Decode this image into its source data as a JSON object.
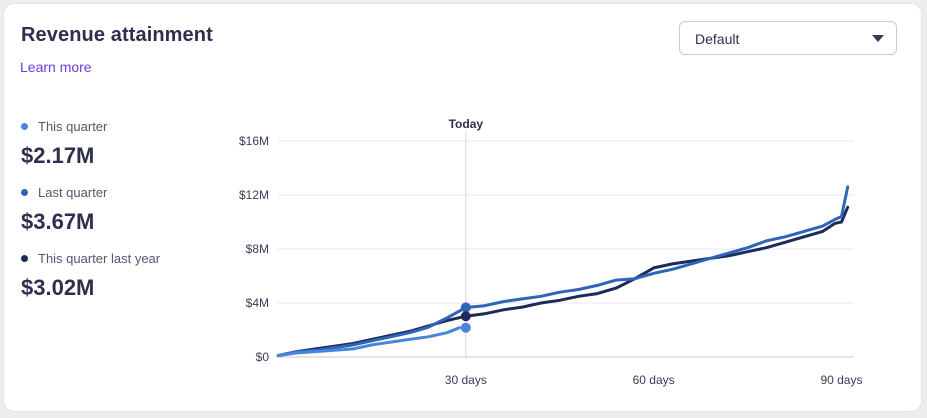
{
  "card": {
    "title": "Revenue attainment",
    "learn_more": "Learn more",
    "dropdown": {
      "selected": "Default",
      "icon": "caret-down-icon"
    }
  },
  "legend": [
    {
      "label": "This quarter",
      "value": "$2.17M",
      "color": "#4a86d8"
    },
    {
      "label": "Last quarter",
      "value": "$3.67M",
      "color": "#2f64b8"
    },
    {
      "label": "This quarter last year",
      "value": "$3.02M",
      "color": "#1c2c5a"
    }
  ],
  "chart_data": {
    "type": "line",
    "marker_label": "Today",
    "marker_x": 30,
    "xlim": [
      0,
      92
    ],
    "ylim": [
      0,
      16
    ],
    "x_ticks": [
      30,
      60,
      90
    ],
    "x_tick_labels": [
      "30 days",
      "60 days",
      "90 days"
    ],
    "y_ticks": [
      0,
      4,
      8,
      12,
      16
    ],
    "y_tick_labels": [
      "$0",
      "$4M",
      "$8M",
      "$12M",
      "$16M"
    ],
    "grid": true,
    "series": [
      {
        "name": "This quarter",
        "color": "#4a86d8",
        "x": [
          0,
          3,
          6,
          9,
          12,
          15,
          18,
          21,
          24,
          27,
          29
        ],
        "y": [
          0.1,
          0.3,
          0.4,
          0.5,
          0.6,
          0.9,
          1.1,
          1.3,
          1.5,
          1.8,
          2.17
        ]
      },
      {
        "name": "Last quarter",
        "color": "#2f64b8",
        "x": [
          0,
          3,
          6,
          9,
          12,
          15,
          18,
          21,
          24,
          27,
          30,
          33,
          36,
          39,
          42,
          45,
          48,
          51,
          54,
          57,
          60,
          63,
          66,
          69,
          72,
          75,
          78,
          81,
          84,
          87,
          89,
          90,
          91
        ],
        "y": [
          0.1,
          0.4,
          0.5,
          0.7,
          0.9,
          1.2,
          1.5,
          1.8,
          2.2,
          2.9,
          3.67,
          3.8,
          4.1,
          4.3,
          4.5,
          4.8,
          5.0,
          5.3,
          5.7,
          5.8,
          6.2,
          6.5,
          6.9,
          7.3,
          7.7,
          8.1,
          8.6,
          8.9,
          9.3,
          9.7,
          10.2,
          10.4,
          12.6
        ]
      },
      {
        "name": "This quarter last year",
        "color": "#1c2c5a",
        "x": [
          0,
          3,
          6,
          9,
          12,
          15,
          18,
          21,
          24,
          27,
          30,
          33,
          36,
          39,
          42,
          45,
          48,
          51,
          54,
          57,
          60,
          63,
          66,
          69,
          72,
          75,
          78,
          81,
          84,
          87,
          89,
          90,
          91
        ],
        "y": [
          0.1,
          0.4,
          0.6,
          0.8,
          1.0,
          1.3,
          1.6,
          1.9,
          2.3,
          2.7,
          3.02,
          3.2,
          3.5,
          3.7,
          4.0,
          4.2,
          4.5,
          4.7,
          5.1,
          5.8,
          6.6,
          6.9,
          7.1,
          7.3,
          7.5,
          7.8,
          8.1,
          8.5,
          8.9,
          9.3,
          9.9,
          10.0,
          11.1
        ]
      }
    ]
  }
}
